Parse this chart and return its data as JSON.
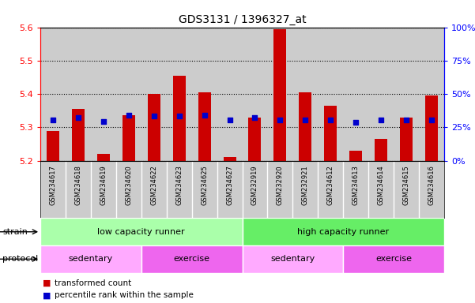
{
  "title": "GDS3131 / 1396327_at",
  "samples": [
    "GSM234617",
    "GSM234618",
    "GSM234619",
    "GSM234620",
    "GSM234622",
    "GSM234623",
    "GSM234625",
    "GSM234627",
    "GSM232919",
    "GSM232920",
    "GSM232921",
    "GSM234612",
    "GSM234613",
    "GSM234614",
    "GSM234615",
    "GSM234616"
  ],
  "transformed_counts": [
    5.29,
    5.355,
    5.22,
    5.335,
    5.4,
    5.455,
    5.405,
    5.21,
    5.33,
    5.595,
    5.405,
    5.365,
    5.23,
    5.265,
    5.33,
    5.395
  ],
  "percentile_ranks": [
    5.323,
    5.328,
    5.317,
    5.337,
    5.333,
    5.333,
    5.335,
    5.323,
    5.328,
    5.323,
    5.323,
    5.323,
    5.315,
    5.323,
    5.323,
    5.323
  ],
  "ymin": 5.2,
  "ymax": 5.6,
  "yticks": [
    5.2,
    5.3,
    5.4,
    5.5,
    5.6
  ],
  "right_yticks": [
    0,
    25,
    50,
    75,
    100
  ],
  "bar_color": "#CC0000",
  "dot_color": "#0000CC",
  "bar_bottom": 5.2,
  "strain_labels": [
    "low capacity runner",
    "high capacity runner"
  ],
  "strain_starts": [
    0,
    8
  ],
  "strain_ends": [
    8,
    16
  ],
  "strain_color_light": "#AAFFAA",
  "strain_color_dark": "#66EE66",
  "protocol_labels": [
    "sedentary",
    "exercise",
    "sedentary",
    "exercise"
  ],
  "protocol_starts": [
    0,
    4,
    8,
    12
  ],
  "protocol_ends": [
    4,
    8,
    12,
    16
  ],
  "protocol_color_light": "#FFAAFF",
  "protocol_color_dark": "#EE66EE",
  "legend_red_label": "transformed count",
  "legend_blue_label": "percentile rank within the sample",
  "col_bg": "#CCCCCC",
  "plot_bg": "#FFFFFF",
  "label_area_bg": "#BBBBBB"
}
